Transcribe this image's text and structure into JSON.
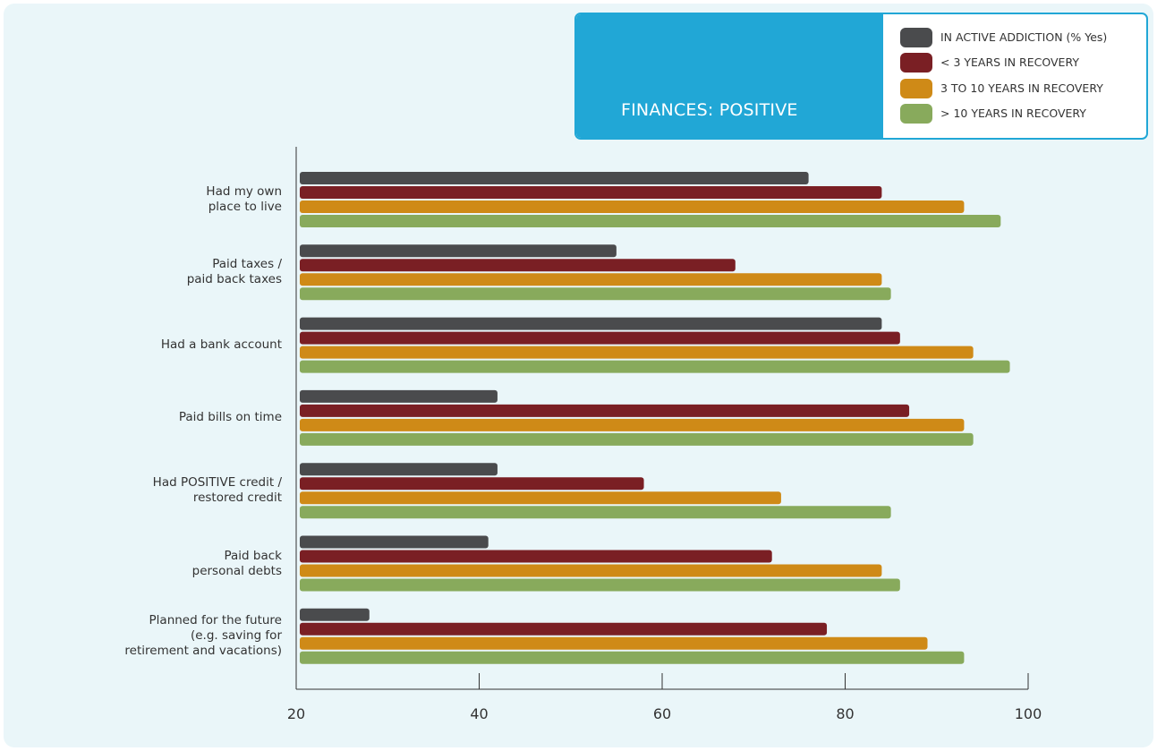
{
  "chart_data": {
    "type": "bar",
    "orientation": "horizontal",
    "title": "FINANCES: POSITIVE",
    "categories": [
      [
        "Had my own",
        "place to live"
      ],
      [
        "Paid taxes /",
        "paid back taxes"
      ],
      [
        "Had a bank account"
      ],
      [
        "Paid bills on time"
      ],
      [
        "Had POSITIVE credit /",
        "restored credit"
      ],
      [
        "Paid back",
        "personal debts"
      ],
      [
        "Planned for the future",
        "(e.g. saving for",
        "retirement and vacations)"
      ]
    ],
    "series": [
      {
        "name": "IN ACTIVE ADDICTION (% Yes)",
        "color": "#4a4b4d",
        "values": [
          76,
          55,
          84,
          42,
          42,
          41,
          28
        ]
      },
      {
        "name": "< 3 YEARS IN RECOVERY",
        "color": "#7a1f24",
        "values": [
          84,
          68,
          86,
          87,
          58,
          72,
          78
        ]
      },
      {
        "name": "3 TO 10 YEARS IN RECOVERY",
        "color": "#cf8a17",
        "values": [
          93,
          84,
          94,
          93,
          73,
          84,
          89
        ]
      },
      {
        "name": "> 10 YEARS IN RECOVERY",
        "color": "#88aa5c",
        "values": [
          97,
          85,
          98,
          94,
          85,
          86,
          93
        ]
      }
    ],
    "xlim": [
      20,
      100
    ],
    "xticks": [
      20,
      40,
      60,
      80,
      100
    ],
    "grid": false,
    "legend_position": "top-right"
  }
}
